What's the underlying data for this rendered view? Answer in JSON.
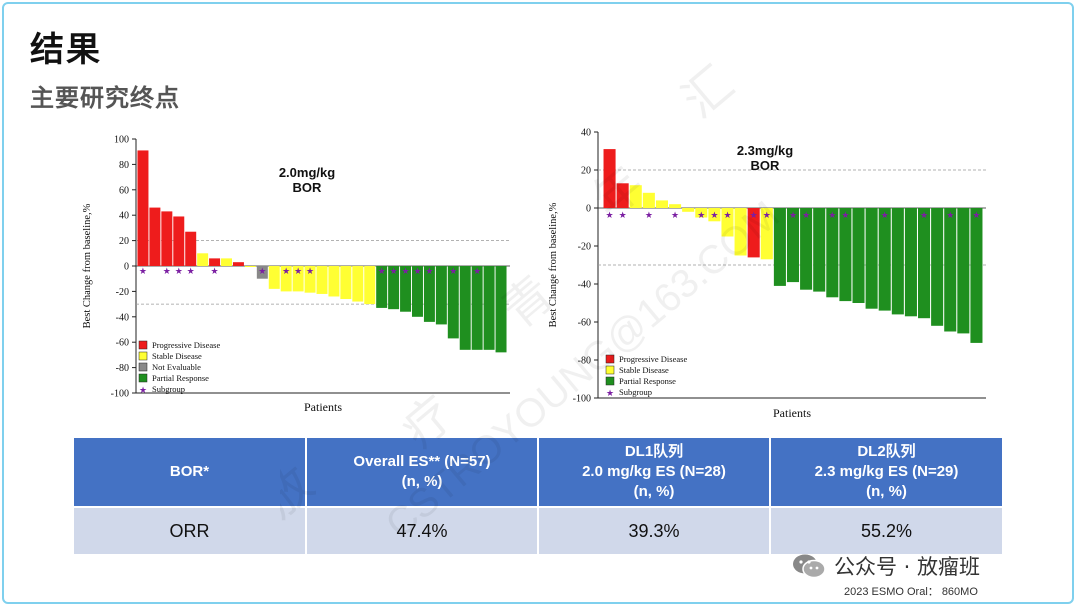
{
  "page": {
    "title": "结果",
    "subtitle": "主要研究终点"
  },
  "colors": {
    "progressive": "#ee1c1c",
    "stable": "#ffff33",
    "not_evaluable": "#888888",
    "partial": "#1f8f1f",
    "subgroup": "#7b1fa2",
    "table_header": "#4472c4",
    "table_row": "#d0d8ea"
  },
  "chart_data": [
    {
      "type": "bar",
      "title": "2.0mg/kg",
      "subtitle": "BOR",
      "xlabel": "Patients",
      "ylabel": "Best Change from baseline,%",
      "ylim": [
        -100,
        100
      ],
      "yticks": [
        100,
        80,
        60,
        40,
        20,
        0,
        -20,
        -40,
        -60,
        -80,
        -100
      ],
      "reference_lines": [
        20,
        -30
      ],
      "legend": [
        "Progressive Disease",
        "Stable Disease",
        "Not Evaluable",
        "Partial Response",
        "Subgroup"
      ],
      "legend_position": "bottom-left",
      "values": [
        91,
        46,
        43,
        39,
        27,
        10,
        6,
        6,
        3,
        0,
        -10,
        -18,
        -20,
        -20,
        -21,
        -22,
        -24,
        -26,
        -28,
        -30,
        -33,
        -34,
        -36,
        -40,
        -44,
        -46,
        -57,
        -66,
        -66,
        -66,
        -68
      ],
      "response": [
        "PD",
        "PD",
        "PD",
        "PD",
        "PD",
        "SD",
        "PD",
        "SD",
        "PD",
        "SD",
        "NE",
        "SD",
        "SD",
        "SD",
        "SD",
        "SD",
        "SD",
        "SD",
        "SD",
        "SD",
        "PR",
        "PR",
        "PR",
        "PR",
        "PR",
        "PR",
        "PR",
        "PR",
        "PR",
        "PR",
        "PR"
      ],
      "subgroup": [
        true,
        false,
        true,
        true,
        true,
        false,
        true,
        false,
        false,
        false,
        true,
        false,
        true,
        true,
        true,
        false,
        false,
        false,
        false,
        false,
        true,
        true,
        true,
        true,
        true,
        false,
        true,
        false,
        true,
        false,
        false
      ]
    },
    {
      "type": "bar",
      "title": "2.3mg/kg",
      "subtitle": "BOR",
      "xlabel": "Patients",
      "ylabel": "Best Change from baseline,%",
      "ylim": [
        -100,
        40
      ],
      "yticks": [
        40,
        20,
        0,
        -20,
        -40,
        -60,
        -80,
        -100
      ],
      "reference_lines": [
        20,
        -30
      ],
      "legend": [
        "Progressive Disease",
        "Stable Disease",
        "Partial Response",
        "Subgroup"
      ],
      "legend_position": "bottom-left",
      "values": [
        31,
        13,
        12,
        8,
        4,
        2,
        -2,
        -5,
        -7,
        -15,
        -25,
        -26,
        -27,
        -41,
        -39,
        -43,
        -44,
        -47,
        -49,
        -50,
        -53,
        -54,
        -56,
        -57,
        -58,
        -62,
        -65,
        -66,
        -71
      ],
      "response": [
        "PD",
        "PD",
        "SD",
        "SD",
        "SD",
        "SD",
        "SD",
        "SD",
        "SD",
        "SD",
        "SD",
        "PD",
        "SD",
        "PR",
        "PR",
        "PR",
        "PR",
        "PR",
        "PR",
        "PR",
        "PR",
        "PR",
        "PR",
        "PR",
        "PR",
        "PR",
        "PR",
        "PR",
        "PR"
      ],
      "subgroup": [
        true,
        true,
        false,
        true,
        false,
        true,
        false,
        true,
        true,
        true,
        false,
        true,
        true,
        false,
        true,
        true,
        false,
        true,
        true,
        false,
        false,
        true,
        false,
        false,
        true,
        false,
        true,
        false,
        true
      ]
    }
  ],
  "table": {
    "headers": [
      [
        "BOR*"
      ],
      [
        "Overall ES** (N=57)",
        "(n, %)"
      ],
      [
        "DL1队列",
        "2.0 mg/kg ES (N=28)",
        "(n, %)"
      ],
      [
        "DL2队列",
        "2.3 mg/kg ES (N=29)",
        "(n, %)"
      ]
    ],
    "rows": [
      [
        "ORR",
        "47.4%",
        "39.3%",
        "55.2%"
      ]
    ]
  },
  "watermark": {
    "chars": [
      "放",
      "疗",
      "青",
      "年",
      "汇"
    ],
    "email": "CSTROYOUNG@163.COM"
  },
  "footer": {
    "wechat": "公众号 · 放瘤班",
    "source": "2023 ESMO Oral： 860MO"
  }
}
